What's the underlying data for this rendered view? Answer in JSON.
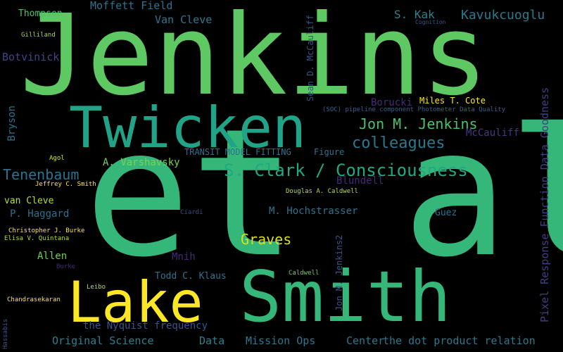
{
  "canvas": {
    "background": "#000000"
  },
  "words": {
    "jenkins": {
      "text": "Jenkins",
      "color": "#5ec962"
    },
    "etal": {
      "text": "et al",
      "color": "#35b779"
    },
    "twicken": {
      "text": "Twicken",
      "color": "#20a386"
    },
    "lake": {
      "text": "Lake",
      "color": "#fde725"
    },
    "smith": {
      "text": "Smith",
      "color": "#35b779"
    },
    "sclark": {
      "text": "S. Clark / Consciousness",
      "color": "#22a884"
    },
    "jmj": {
      "text": "Jon M. Jenkins",
      "color": "#4ac16d"
    },
    "colleagues": {
      "text": "colleagues",
      "color": "#2a788e"
    },
    "tenenbaum": {
      "text": "Tenenbaum",
      "color": "#2c728e"
    },
    "graves": {
      "text": "Graves",
      "color": "#d8e219"
    },
    "kavuk": {
      "text": "Kavukcuoglu",
      "color": "#2a788e"
    },
    "skak": {
      "text": "S. Kak",
      "color": "#25858e"
    },
    "moffett": {
      "text": "Moffett Field",
      "color": "#2c728e"
    },
    "vancleve1": {
      "text": "Van Cleve",
      "color": "#2a788e"
    },
    "thompson": {
      "text": "Thompson",
      "color": "#4ac16d"
    },
    "gilliland": {
      "text": "Gilliland",
      "color": "#a0da39"
    },
    "botvinick": {
      "text": "Botvinick",
      "color": "#414487"
    },
    "bryson": {
      "text": "Bryson",
      "color": "#2c728e"
    },
    "agol": {
      "text": "Agol",
      "color": "#d8e219"
    },
    "avarsh": {
      "text": "A. Varshavsky",
      "color": "#7ad151"
    },
    "transit": {
      "text": "TRANSIT MODEL FITTING",
      "color": "#2c728e"
    },
    "figure": {
      "text": "Figure",
      "color": "#2c728e"
    },
    "jcsmith": {
      "text": "Jeffrey C. Smith",
      "color": "#fde725"
    },
    "vancleve2": {
      "text": "van Cleve",
      "color": "#b5de2b"
    },
    "haggard": {
      "text": "P. Haggard",
      "color": "#2c728e"
    },
    "cjburke": {
      "text": "Christopher J. Burke",
      "color": "#fde725"
    },
    "quintana": {
      "text": "Elisa V. Quintana",
      "color": "#b5de2b"
    },
    "allen": {
      "text": "Allen",
      "color": "#6ece58"
    },
    "burke": {
      "text": "Burke",
      "color": "#482878"
    },
    "leibo": {
      "text": "Leibo",
      "color": "#b5de2b"
    },
    "chandra": {
      "text": "Chandrasekaran",
      "color": "#fde725"
    },
    "nyquist": {
      "text": "the Nyquist frequency",
      "color": "#3b528b"
    },
    "origsci": {
      "text": "Original Science",
      "color": "#26828e"
    },
    "data1": {
      "text": "Data",
      "color": "#26828e"
    },
    "mission": {
      "text": "Mission Ops",
      "color": "#2a788e"
    },
    "center": {
      "text": "Center",
      "color": "#2a788e"
    },
    "dotprod": {
      "text": "the dot product relation",
      "color": "#2a788e"
    },
    "mnih": {
      "text": "Mnih",
      "color": "#482878"
    },
    "klaus": {
      "text": "Todd C. Klaus",
      "color": "#2c728e"
    },
    "hochs": {
      "text": "M. Hochstrasser",
      "color": "#2c728e"
    },
    "blundell": {
      "text": "Blundell",
      "color": "#482878"
    },
    "caldwell1": {
      "text": "Douglas A. Caldwell",
      "color": "#b5de2b"
    },
    "ciardi": {
      "text": "Ciardi",
      "color": "#3e4989"
    },
    "caldwell2": {
      "text": "Caldwell",
      "color": "#6ece58"
    },
    "guez": {
      "text": "Guez",
      "color": "#2c728e"
    },
    "borucki": {
      "text": "Borucki",
      "color": "#482878"
    },
    "milescote": {
      "text": "Miles T. Cote",
      "color": "#fde725"
    },
    "soc": {
      "text": "(SOC) pipeline component Photometer Data Quality",
      "color": "#355f8d"
    },
    "mccauliff": {
      "text": "McCauliff",
      "color": "#443983"
    },
    "cognition": {
      "text": "Cognition",
      "color": "#3b528b"
    },
    "mccauliff_v": {
      "text": "Sean D. McCauliff",
      "color": "#3b528b"
    },
    "jenkins2": {
      "text": "Jon M. Jenkins2",
      "color": "#3b528b"
    },
    "hassabis": {
      "text": "Hassabis",
      "color": "#3b528b"
    },
    "pixelresp": {
      "text": "Pixel Response Function Data Goodness",
      "color": "#433e85"
    }
  }
}
